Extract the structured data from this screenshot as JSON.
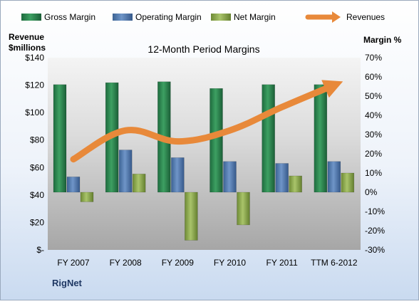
{
  "chart_data": {
    "type": "bar",
    "title": "12-Month Period Margins",
    "left_axis_label_line1": "Revenue",
    "left_axis_label_line2": "$millions",
    "right_axis_label": "Margin %",
    "company": "RigNet",
    "categories": [
      "FY 2007",
      "FY 2008",
      "FY 2009",
      "FY 2010",
      "FY 2011",
      "TTM 6-2012"
    ],
    "left_axis": {
      "min": 0,
      "max": 140,
      "step": 20,
      "tick_labels": [
        "$-",
        "$20",
        "$40",
        "$60",
        "$80",
        "$100",
        "$120",
        "$140"
      ]
    },
    "right_axis": {
      "min": -30,
      "max": 70,
      "step": 10,
      "tick_labels": [
        "-30%",
        "-20%",
        "-10%",
        "0%",
        "10%",
        "20%",
        "30%",
        "40%",
        "50%",
        "60%",
        "70%"
      ]
    },
    "series": [
      {
        "name": "Gross Margin",
        "axis": "right",
        "unit": "%",
        "values": [
          56,
          57,
          57.5,
          54,
          56,
          56
        ],
        "color": "#2e8b57"
      },
      {
        "name": "Operating Margin",
        "axis": "right",
        "unit": "%",
        "values": [
          8,
          22,
          18,
          16,
          15,
          16
        ],
        "color": "#4f81bd"
      },
      {
        "name": "Net Margin",
        "axis": "right",
        "unit": "%",
        "values": [
          -5,
          9.5,
          -25,
          -17,
          8.5,
          10
        ],
        "color": "#9bbb59"
      },
      {
        "name": "Revenues",
        "axis": "left",
        "unit": "$millions",
        "type": "line",
        "values": [
          66,
          87,
          79,
          87,
          104,
          120
        ],
        "color": "#e8893a"
      }
    ],
    "legend_position": "top",
    "grid": false
  }
}
